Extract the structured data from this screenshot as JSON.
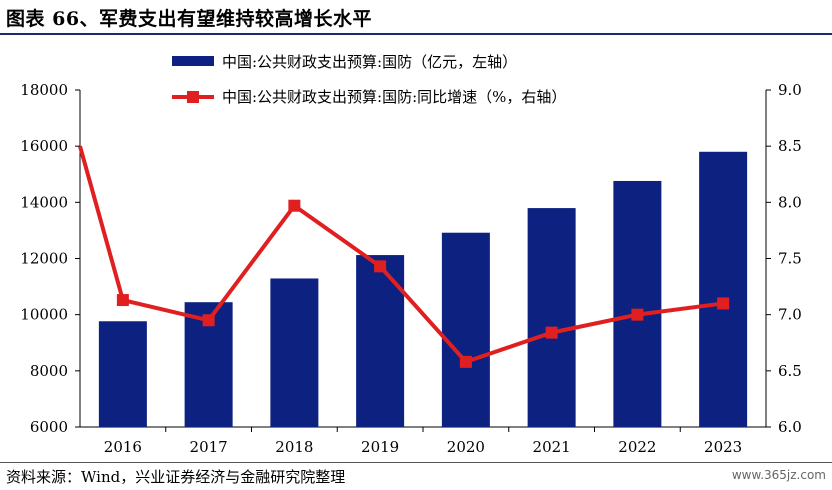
{
  "title": "图表 66、军费支出有望维持较高增长水平",
  "source": "资料来源：Wind，兴业证券经济与金融研究院整理",
  "watermark": "www.365jz.com",
  "chart_data": {
    "type": "bar",
    "categories": [
      "2016",
      "2017",
      "2018",
      "2019",
      "2020",
      "2021",
      "2022",
      "2023"
    ],
    "series": [
      {
        "name": "中国:公共财政支出预算:国防（亿元，左轴）",
        "type": "bar",
        "axis": "left",
        "color": "#0d2180",
        "values": [
          9765,
          10444,
          11289,
          12122,
          12918,
          13795,
          14761,
          15800
        ]
      },
      {
        "name": "中国:公共财政支出预算:国防:同比增速（%，右轴）",
        "type": "line",
        "axis": "right",
        "color": "#e02020",
        "values": [
          7.13,
          6.95,
          7.97,
          7.43,
          6.58,
          6.84,
          7.0,
          7.1
        ],
        "first_segment_start": 8.5
      }
    ],
    "y_left": {
      "min": 6000,
      "max": 18000,
      "ticks": [
        "6000",
        "8000",
        "10000",
        "12000",
        "14000",
        "16000",
        "18000"
      ]
    },
    "y_right": {
      "min": 6.0,
      "max": 9.0,
      "ticks": [
        "6.0",
        "6.5",
        "7.0",
        "7.5",
        "8.0",
        "8.5",
        "9.0"
      ]
    },
    "grid": false,
    "legend_position": "top-center"
  }
}
